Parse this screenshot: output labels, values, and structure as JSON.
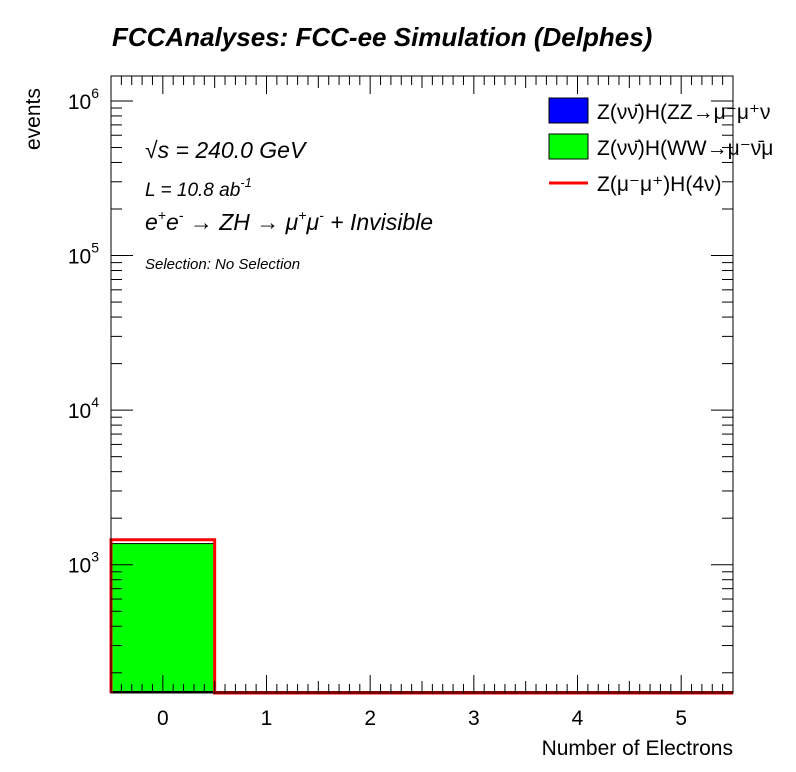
{
  "chart_data": {
    "type": "bar",
    "title": "FCCAnalyses: FCC-ee Simulation (Delphes)",
    "xlabel": "Number of Electrons",
    "ylabel": "events",
    "xlim": [
      -0.5,
      5.5
    ],
    "ylim": [
      148,
      1450000
    ],
    "yscale": "log",
    "x_ticks": [
      "0",
      "1",
      "2",
      "3",
      "4",
      "5"
    ],
    "y_ticks": [
      {
        "base": "10",
        "exp": "3",
        "value": 1000
      },
      {
        "base": "10",
        "exp": "4",
        "value": 10000
      },
      {
        "base": "10",
        "exp": "5",
        "value": 100000
      },
      {
        "base": "10",
        "exp": "6",
        "value": 1000000
      }
    ],
    "bins": [
      0,
      1,
      2,
      3,
      4,
      5
    ],
    "stacked_series": [
      {
        "name": "Z(νν̄)H(ZZ→μ⁻μ⁺ν",
        "label_main": "Z(νν̄)H(ZZ→μ",
        "label_tail": "⁻μ⁺ν",
        "color": "#0000ff",
        "values": [
          0,
          0,
          0,
          0,
          0,
          0
        ]
      },
      {
        "name": "Z(νν̄)H(WW→μ⁻ν̄μ",
        "label_main": "Z(νν̄)H(WW→μ",
        "label_tail": "⁻ν̄μ",
        "color": "#00ff00",
        "values": [
          1370,
          0,
          0,
          0,
          0,
          0
        ]
      }
    ],
    "line_series": [
      {
        "name": "Z(μ⁻μ⁺)H(4ν)",
        "color": "#ff0000",
        "values": [
          1450,
          0,
          0,
          0,
          0,
          0
        ]
      }
    ],
    "legend_placement": "top-right",
    "annotations": {
      "sqrt_s": "√s = 240.0 GeV",
      "lumi": "L = 10.8 ab",
      "lumi_exp": "-1",
      "process_a": "e",
      "process_a_sup": "+",
      "process_b": "e",
      "process_b_sup": "-",
      "process_c": " → ZH → μ",
      "process_c_sup": "+",
      "process_d": "μ",
      "process_d_sup": "-",
      "process_e": " + Invisible",
      "selection": "Selection: No Selection"
    }
  }
}
